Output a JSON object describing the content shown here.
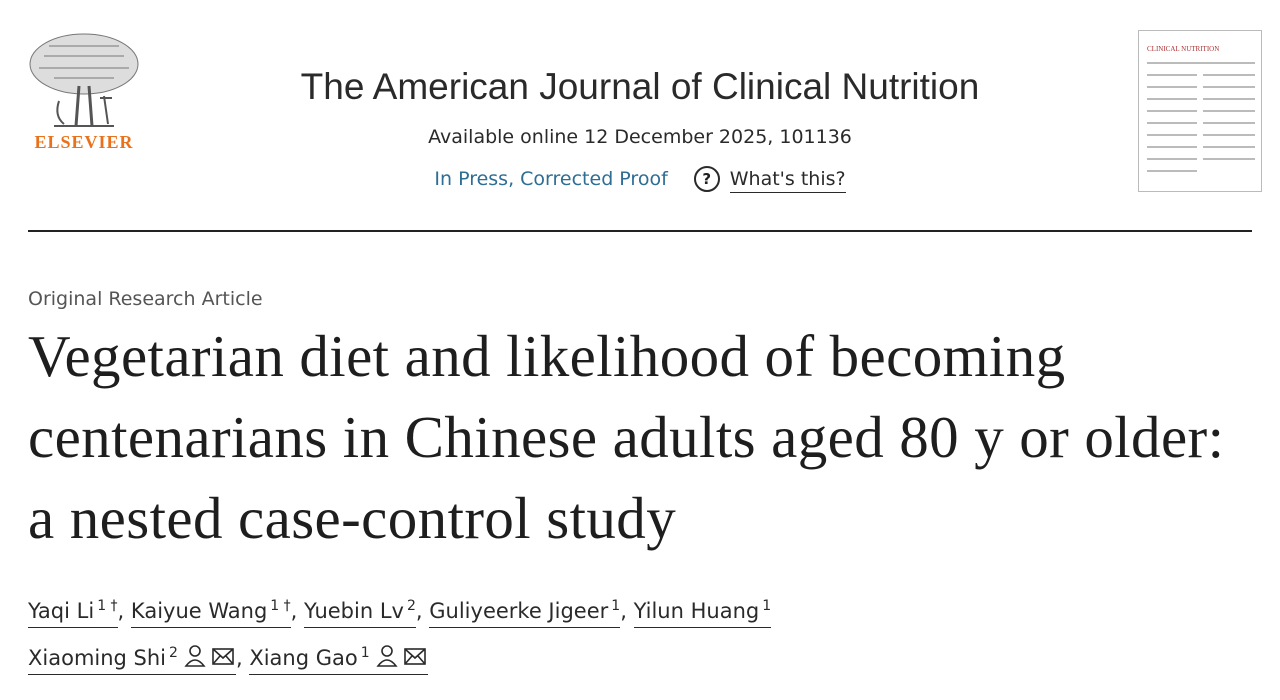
{
  "header": {
    "publisher": "ELSEVIER",
    "journal": "The American Journal of Clinical Nutrition",
    "availability": "Available online 12 December 2025, 101136",
    "status": "In Press, Corrected Proof",
    "help": "What's this?",
    "cover_title": "CLINICAL NUTRITION"
  },
  "article": {
    "type": "Original Research Article",
    "title": "Vegetarian diet and likelihood of becoming centenarians in Chinese adults aged 80 y or older: a nested case-control study"
  },
  "authors": {
    "separator": ",",
    "list": [
      {
        "name": "Yaqi Li",
        "sup": "1 †"
      },
      {
        "name": "Kaiyue Wang",
        "sup": "1 †"
      },
      {
        "name": "Yuebin Lv",
        "sup": "2"
      },
      {
        "name": "Guliyeerke Jigeer",
        "sup": "1"
      },
      {
        "name": "Yilun Huang",
        "sup": "1"
      },
      {
        "name": "Xiaoming Shi",
        "sup": "2"
      },
      {
        "name": "Xiang Gao",
        "sup": "1"
      }
    ]
  }
}
